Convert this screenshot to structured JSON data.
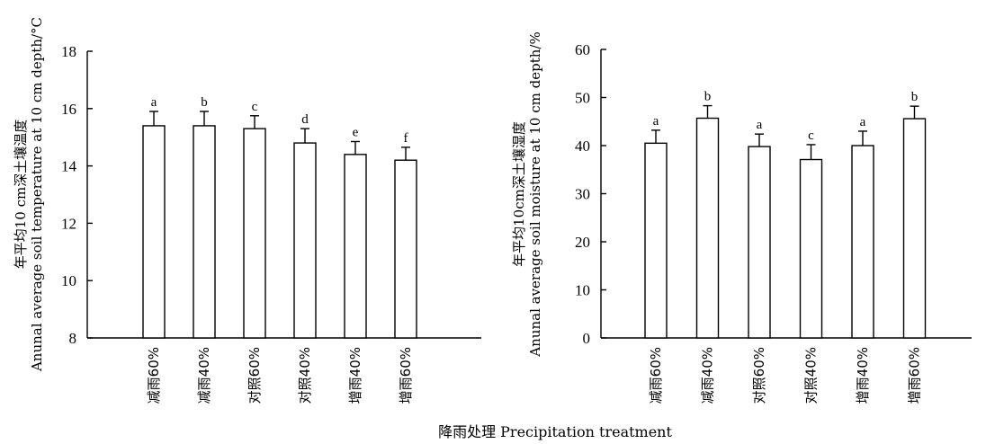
{
  "figure": {
    "shared_xlabel": "降雨处理 Precipitation  treatment"
  },
  "chart_data": [
    {
      "type": "bar",
      "categories": [
        "减雨60%",
        "减雨40%",
        "对照60%",
        "对照40%",
        "增雨40%",
        "增雨60%"
      ],
      "values": [
        15.4,
        15.4,
        15.3,
        14.8,
        14.4,
        14.2
      ],
      "errors": [
        0.5,
        0.5,
        0.45,
        0.5,
        0.45,
        0.45
      ],
      "significance": [
        "a",
        "b",
        "c",
        "d",
        "e",
        "f"
      ],
      "ylabel_cn": "年平均10 cm深土壤温度",
      "ylabel_en": "Anunal average soil temperature at 10 cm depth/°C",
      "ylim": [
        8,
        18
      ],
      "yticks": [
        8,
        10,
        12,
        14,
        16,
        18
      ],
      "grid": false
    },
    {
      "type": "bar",
      "categories": [
        "减雨60%",
        "减雨40%",
        "对照60%",
        "对照40%",
        "增雨40%",
        "增雨60%"
      ],
      "values": [
        40.5,
        45.7,
        39.8,
        37.1,
        40.0,
        45.6
      ],
      "errors": [
        2.7,
        2.6,
        2.6,
        3.1,
        3.0,
        2.6
      ],
      "significance": [
        "a",
        "b",
        "a",
        "c",
        "a",
        "b"
      ],
      "ylabel_cn": "年平均10cm深土壤湿度",
      "ylabel_en": "Anunal average soil moisture at 10 cm depth/%",
      "ylim": [
        0,
        60
      ],
      "yticks": [
        0,
        10,
        20,
        30,
        40,
        50,
        60
      ],
      "grid": false
    }
  ]
}
